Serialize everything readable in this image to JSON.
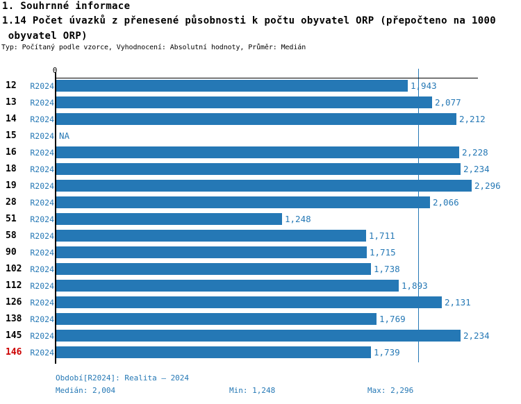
{
  "header": {
    "section_title": "1. Souhrnné informace",
    "indicator_title_line1": "1.14 Počet úvazků z přenesené působnosti k počtu obyvatel ORP (přepočteno na 1000",
    "indicator_title_line2": " obyvatel ORP)",
    "meta_line": "Typ: Počítaný podle vzorce, Vyhodnocení: Absolutní hodnoty, Průměr: Medián"
  },
  "chart_data": {
    "type": "bar",
    "orientation": "horizontal",
    "title": "1.14 Počet úvazků z přenesené působnosti k počtu obyvatel ORP (přepočteno na 1000 obyvatel ORP)",
    "series_name": "R2024",
    "axis": {
      "origin_label": "0",
      "max": 2.33
    },
    "legend_position": "none",
    "grid": false,
    "categories": [
      "12",
      "13",
      "14",
      "15",
      "16",
      "18",
      "19",
      "28",
      "51",
      "58",
      "90",
      "102",
      "112",
      "126",
      "138",
      "145",
      "146"
    ],
    "rows": [
      {
        "id": "12",
        "period": "R2024",
        "value": 1.943,
        "value_label": "1,943",
        "highlight": false
      },
      {
        "id": "13",
        "period": "R2024",
        "value": 2.077,
        "value_label": "2,077",
        "highlight": false
      },
      {
        "id": "14",
        "period": "R2024",
        "value": 2.212,
        "value_label": "2,212",
        "highlight": false
      },
      {
        "id": "15",
        "period": "R2024",
        "value": null,
        "value_label": "NA",
        "highlight": false
      },
      {
        "id": "16",
        "period": "R2024",
        "value": 2.228,
        "value_label": "2,228",
        "highlight": false
      },
      {
        "id": "18",
        "period": "R2024",
        "value": 2.234,
        "value_label": "2,234",
        "highlight": false
      },
      {
        "id": "19",
        "period": "R2024",
        "value": 2.296,
        "value_label": "2,296",
        "highlight": false
      },
      {
        "id": "28",
        "period": "R2024",
        "value": 2.066,
        "value_label": "2,066",
        "highlight": false
      },
      {
        "id": "51",
        "period": "R2024",
        "value": 1.248,
        "value_label": "1,248",
        "highlight": false
      },
      {
        "id": "58",
        "period": "R2024",
        "value": 1.711,
        "value_label": "1,711",
        "highlight": false
      },
      {
        "id": "90",
        "period": "R2024",
        "value": 1.715,
        "value_label": "1,715",
        "highlight": false
      },
      {
        "id": "102",
        "period": "R2024",
        "value": 1.738,
        "value_label": "1,738",
        "highlight": false
      },
      {
        "id": "112",
        "period": "R2024",
        "value": 1.893,
        "value_label": "1,893",
        "highlight": false
      },
      {
        "id": "126",
        "period": "R2024",
        "value": 2.131,
        "value_label": "2,131",
        "highlight": false
      },
      {
        "id": "138",
        "period": "R2024",
        "value": 1.769,
        "value_label": "1,769",
        "highlight": false
      },
      {
        "id": "145",
        "period": "R2024",
        "value": 2.234,
        "value_label": "2,234",
        "highlight": false
      },
      {
        "id": "146",
        "period": "R2024",
        "value": 1.739,
        "value_label": "1,739",
        "highlight": true
      }
    ],
    "median": {
      "value": 2.004,
      "label": "2,004"
    },
    "min": {
      "value": 1.248,
      "label": "1,248"
    },
    "max": {
      "value": 2.296,
      "label": "2,296"
    }
  },
  "footer": {
    "period_line": "Období[R2024]: Realita – 2024",
    "median_label": "Medián: 2,004",
    "min_label": "Min: 1,248",
    "max_label": "Max: 2,296"
  },
  "colors": {
    "bar": "#2578b5",
    "blue_text": "#2578b5",
    "highlight_red": "#cc0000",
    "axis_black": "#000000"
  }
}
